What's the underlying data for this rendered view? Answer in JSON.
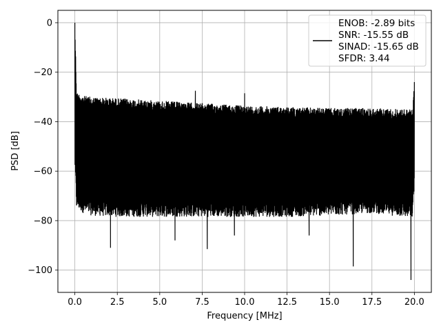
{
  "chart_data": {
    "type": "line",
    "title": "",
    "xlabel": "Frequency [MHz]",
    "ylabel": "PSD [dB]",
    "xlim": [
      -1.0,
      21.0
    ],
    "ylim": [
      -109.0,
      5.0
    ],
    "xticks": [
      0.0,
      2.5,
      5.0,
      7.5,
      10.0,
      12.5,
      15.0,
      17.5,
      20.0
    ],
    "xtick_labels": [
      "0.0",
      "2.5",
      "5.0",
      "7.5",
      "10.0",
      "12.5",
      "15.0",
      "17.5",
      "20.0"
    ],
    "yticks": [
      0,
      -20,
      -40,
      -60,
      -80,
      -100
    ],
    "ytick_labels": [
      "0",
      "−20",
      "−40",
      "−60",
      "−80",
      "−100"
    ],
    "grid": true,
    "legend_position": "top-right",
    "series": [
      {
        "name": "",
        "color": "#000000",
        "legend_lines": [
          "ENOB: -2.89 bits",
          "SNR: -15.55 dB",
          "SINAD: -15.65 dB",
          "SFDR: 3.44"
        ],
        "envelope": {
          "x": [
            0.0,
            0.1,
            0.5,
            1.0,
            2.5,
            5.0,
            7.5,
            10.0,
            12.5,
            15.0,
            17.5,
            19.9,
            20.0
          ],
          "upper": [
            0.0,
            -28.0,
            -29.5,
            -30.0,
            -30.5,
            -31.5,
            -32.5,
            -33.5,
            -34.0,
            -34.5,
            -34.5,
            -35.0,
            -24.0
          ],
          "lower": [
            -58.0,
            -75.0,
            -77.0,
            -78.0,
            -78.5,
            -78.5,
            -78.5,
            -78.5,
            -78.5,
            -78.0,
            -77.0,
            -79.0,
            -66.0
          ]
        },
        "peaks": [
          {
            "x": 0.0,
            "y": 0.0
          },
          {
            "x": 0.05,
            "y": -21.0
          },
          {
            "x": 7.1,
            "y": -27.5
          },
          {
            "x": 10.0,
            "y": -28.5
          },
          {
            "x": 20.0,
            "y": -24.0
          }
        ],
        "dips": [
          {
            "x": 2.1,
            "y": -91.0
          },
          {
            "x": 5.9,
            "y": -88.0
          },
          {
            "x": 7.8,
            "y": -91.5
          },
          {
            "x": 9.4,
            "y": -86.0
          },
          {
            "x": 13.8,
            "y": -86.0
          },
          {
            "x": 16.4,
            "y": -98.5
          },
          {
            "x": 19.8,
            "y": -104.0
          }
        ]
      }
    ]
  }
}
